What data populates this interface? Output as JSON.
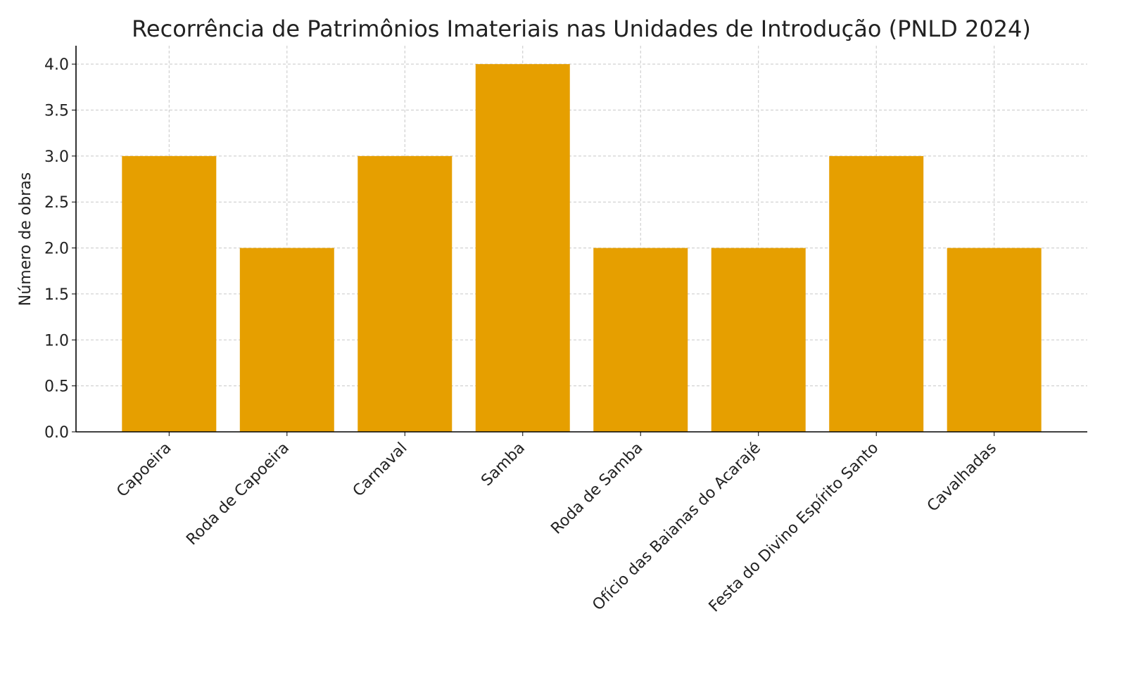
{
  "chart_data": {
    "type": "bar",
    "title": "Recorrência de Patrimônios Imateriais nas Unidades de Introdução (PNLD 2024)",
    "xlabel": "",
    "ylabel": "Número de obras",
    "categories": [
      "Capoeira",
      "Roda de Capoeira",
      "Carnaval",
      "Samba",
      "Roda de Samba",
      "Ofício das Baianas do Acarajé",
      "Festa do Divino Espírito Santo",
      "Cavalhadas"
    ],
    "values": [
      3,
      2,
      3,
      4,
      2,
      2,
      3,
      2
    ],
    "ylim": [
      0,
      4.2
    ],
    "yticks": [
      "0.0",
      "0.5",
      "1.0",
      "1.5",
      "2.0",
      "2.5",
      "3.0",
      "3.5",
      "4.0"
    ],
    "grid": true,
    "bar_color": "#E69F00"
  }
}
